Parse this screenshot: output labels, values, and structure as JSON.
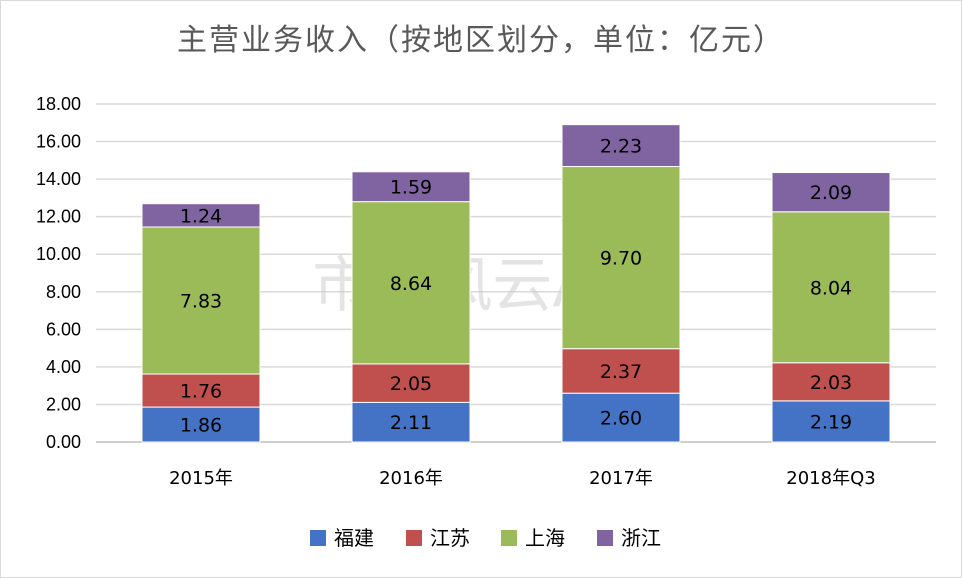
{
  "watermark": "市值风云App",
  "chart_data": {
    "type": "bar",
    "stacked": true,
    "title": "主营业务收入（按地区划分，单位：亿元）",
    "categories": [
      "2015年",
      "2016年",
      "2017年",
      "2018年Q3"
    ],
    "series": [
      {
        "name": "福建",
        "color": "#4472c4",
        "values": [
          1.86,
          2.11,
          2.6,
          2.19
        ]
      },
      {
        "name": "江苏",
        "color": "#c0504d",
        "values": [
          1.76,
          2.05,
          2.37,
          2.03
        ]
      },
      {
        "name": "上海",
        "color": "#9bbb59",
        "values": [
          7.83,
          8.64,
          9.7,
          8.04
        ]
      },
      {
        "name": "浙江",
        "color": "#8064a2",
        "values": [
          1.24,
          1.59,
          2.23,
          2.09
        ]
      }
    ],
    "value_labels": [
      [
        "1.86",
        "2.11",
        "2.60",
        "2.19"
      ],
      [
        "1.76",
        "2.05",
        "2.37",
        "2.03"
      ],
      [
        "7.83",
        "8.64",
        "9.70",
        "8.04"
      ],
      [
        "1.24",
        "1.59",
        "2.23",
        "2.09"
      ]
    ],
    "yticks": [
      "0.00",
      "2.00",
      "4.00",
      "6.00",
      "8.00",
      "10.00",
      "12.00",
      "14.00",
      "16.00",
      "18.00"
    ],
    "ylim": [
      0,
      18
    ],
    "grid": true,
    "legend_position": "bottom"
  }
}
